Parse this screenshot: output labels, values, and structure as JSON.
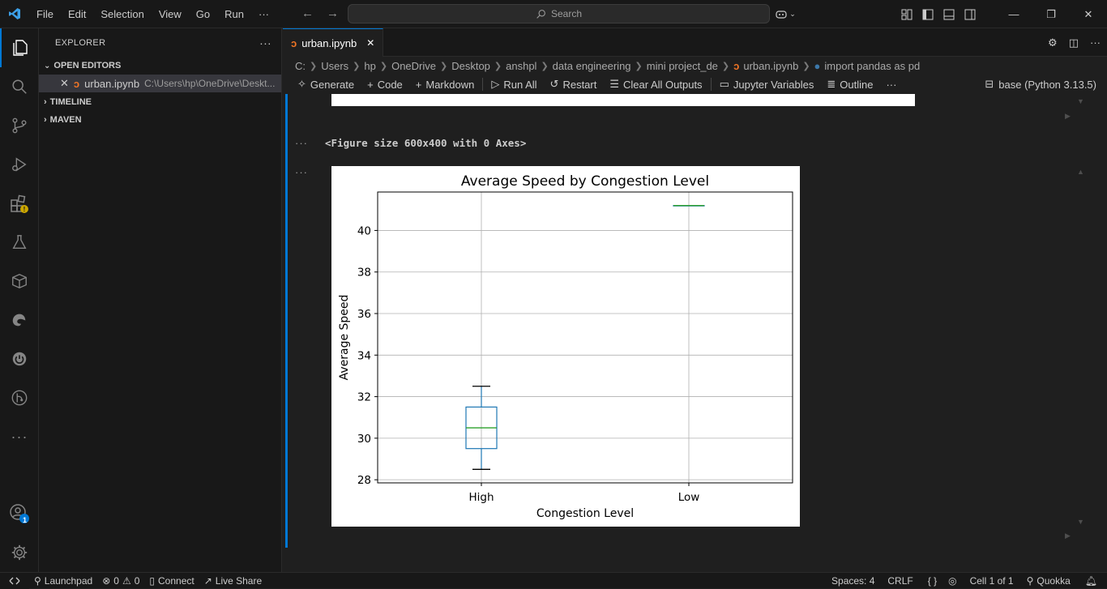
{
  "menu": [
    "File",
    "Edit",
    "Selection",
    "View",
    "Go",
    "Run",
    "···"
  ],
  "search": {
    "label": "Search"
  },
  "sidebar": {
    "title": "EXPLORER",
    "sections": {
      "open_editors": "OPEN EDITORS",
      "timeline": "TIMELINE",
      "maven": "MAVEN"
    },
    "open_file": {
      "name": "urban.ipynb",
      "path": "C:\\Users\\hp\\OneDrive\\Deskt..."
    }
  },
  "tab": {
    "label": "urban.ipynb"
  },
  "breadcrumb": [
    "C:",
    "Users",
    "hp",
    "OneDrive",
    "Desktop",
    "anshpl",
    "data engineering",
    "mini project_de",
    "urban.ipynb",
    "import pandas as pd"
  ],
  "toolbar": {
    "generate": "Generate",
    "code": "Code",
    "markdown": "Markdown",
    "run_all": "Run All",
    "restart": "Restart",
    "clear_outputs": "Clear All Outputs",
    "variables": "Jupyter Variables",
    "outline": "Outline",
    "more": "···",
    "kernel": "base (Python 3.13.5)"
  },
  "cell": {
    "output_dots": "···",
    "text_output": "<Figure size 600x400 with 0 Axes>"
  },
  "chart_data": {
    "type": "box",
    "title": "Average Speed by Congestion Level",
    "xlabel": "Congestion Level",
    "ylabel": "Average Speed",
    "categories": [
      "High",
      "Low"
    ],
    "boxes": [
      {
        "category": "High",
        "min": 28.5,
        "q1": 29.5,
        "median": 30.5,
        "q3": 31.5,
        "max": 32.5
      },
      {
        "category": "Low",
        "min": 41.2,
        "q1": 41.2,
        "median": 41.2,
        "q3": 41.2,
        "max": 41.2
      }
    ],
    "yticks": [
      28,
      30,
      32,
      34,
      36,
      38,
      40
    ],
    "ylim": [
      27.85,
      41.85
    ],
    "grid": true,
    "colors": {
      "box": "#1f77b4",
      "median": "#2ca02c",
      "whisker_cap": "#000000",
      "grid": "#b0b0b0"
    }
  },
  "status": {
    "launchpad": "Launchpad",
    "errors": "0",
    "warnings": "0",
    "connect": "Connect",
    "liveshare": "Live Share",
    "spaces": "Spaces: 4",
    "eol": "CRLF",
    "braces": "{ }",
    "cell": "Cell 1 of 1",
    "quokka": "Quokka"
  },
  "accounts_badge": "1"
}
